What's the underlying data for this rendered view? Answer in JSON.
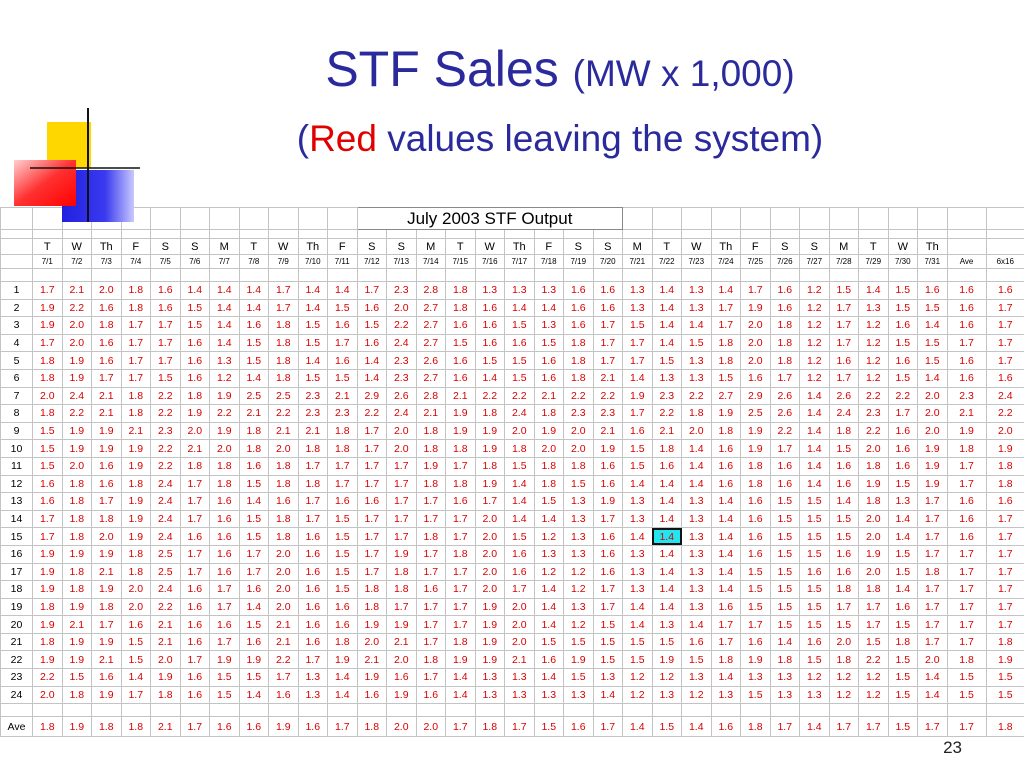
{
  "header": {
    "title": "STF Sales",
    "subtitle": "(MW x 1,000)",
    "note_open": "(",
    "note_red": "Red",
    "note_rest": " values leaving the system)"
  },
  "table": {
    "title": "July 2003 STF Output",
    "days": [
      "T",
      "W",
      "Th",
      "F",
      "S",
      "S",
      "M",
      "T",
      "W",
      "Th",
      "F",
      "S",
      "S",
      "M",
      "T",
      "W",
      "Th",
      "F",
      "S",
      "S",
      "M",
      "T",
      "W",
      "Th",
      "F",
      "S",
      "S",
      "M",
      "T",
      "W",
      "Th"
    ],
    "dates": [
      "7/1",
      "7/2",
      "7/3",
      "7/4",
      "7/5",
      "7/6",
      "7/7",
      "7/8",
      "7/9",
      "7/10",
      "7/11",
      "7/12",
      "7/13",
      "7/14",
      "7/15",
      "7/16",
      "7/17",
      "7/18",
      "7/19",
      "7/20",
      "7/21",
      "7/22",
      "7/23",
      "7/24",
      "7/25",
      "7/26",
      "7/27",
      "7/28",
      "7/29",
      "7/30",
      "7/31",
      "Ave",
      "6x16"
    ],
    "rows": [
      {
        "label": "1",
        "values": [
          "1.7",
          "2.1",
          "2.0",
          "1.8",
          "1.6",
          "1.4",
          "1.4",
          "1.4",
          "1.7",
          "1.4",
          "1.4",
          "1.7",
          "2.3",
          "2.8",
          "1.8",
          "1.3",
          "1.3",
          "1.3",
          "1.6",
          "1.6",
          "1.3",
          "1.4",
          "1.3",
          "1.4",
          "1.7",
          "1.6",
          "1.2",
          "1.5",
          "1.4",
          "1.5",
          "1.6",
          "1.6",
          "1.6"
        ]
      },
      {
        "label": "2",
        "values": [
          "1.9",
          "2.2",
          "1.6",
          "1.8",
          "1.6",
          "1.5",
          "1.4",
          "1.4",
          "1.7",
          "1.4",
          "1.5",
          "1.6",
          "2.0",
          "2.7",
          "1.8",
          "1.6",
          "1.4",
          "1.4",
          "1.6",
          "1.6",
          "1.3",
          "1.4",
          "1.3",
          "1.7",
          "1.9",
          "1.6",
          "1.2",
          "1.7",
          "1.3",
          "1.5",
          "1.5",
          "1.6",
          "1.7"
        ]
      },
      {
        "label": "3",
        "values": [
          "1.9",
          "2.0",
          "1.8",
          "1.7",
          "1.7",
          "1.5",
          "1.4",
          "1.6",
          "1.8",
          "1.5",
          "1.6",
          "1.5",
          "2.2",
          "2.7",
          "1.6",
          "1.6",
          "1.5",
          "1.3",
          "1.6",
          "1.7",
          "1.5",
          "1.4",
          "1.4",
          "1.7",
          "2.0",
          "1.8",
          "1.2",
          "1.7",
          "1.2",
          "1.6",
          "1.4",
          "1.6",
          "1.7"
        ]
      },
      {
        "label": "4",
        "values": [
          "1.7",
          "2.0",
          "1.6",
          "1.7",
          "1.7",
          "1.6",
          "1.4",
          "1.5",
          "1.8",
          "1.5",
          "1.7",
          "1.6",
          "2.4",
          "2.7",
          "1.5",
          "1.6",
          "1.6",
          "1.5",
          "1.8",
          "1.7",
          "1.7",
          "1.4",
          "1.5",
          "1.8",
          "2.0",
          "1.8",
          "1.2",
          "1.7",
          "1.2",
          "1.5",
          "1.5",
          "1.7",
          "1.7"
        ]
      },
      {
        "label": "5",
        "values": [
          "1.8",
          "1.9",
          "1.6",
          "1.7",
          "1.7",
          "1.6",
          "1.3",
          "1.5",
          "1.8",
          "1.4",
          "1.6",
          "1.4",
          "2.3",
          "2.6",
          "1.6",
          "1.5",
          "1.5",
          "1.6",
          "1.8",
          "1.7",
          "1.7",
          "1.5",
          "1.3",
          "1.8",
          "2.0",
          "1.8",
          "1.2",
          "1.6",
          "1.2",
          "1.6",
          "1.5",
          "1.6",
          "1.7"
        ]
      },
      {
        "label": "6",
        "values": [
          "1.8",
          "1.9",
          "1.7",
          "1.7",
          "1.5",
          "1.6",
          "1.2",
          "1.4",
          "1.8",
          "1.5",
          "1.5",
          "1.4",
          "2.3",
          "2.7",
          "1.6",
          "1.4",
          "1.5",
          "1.6",
          "1.8",
          "2.1",
          "1.4",
          "1.3",
          "1.3",
          "1.5",
          "1.6",
          "1.7",
          "1.2",
          "1.7",
          "1.2",
          "1.5",
          "1.4",
          "1.6",
          "1.6"
        ]
      },
      {
        "label": "7",
        "values": [
          "2.0",
          "2.4",
          "2.1",
          "1.8",
          "2.2",
          "1.8",
          "1.9",
          "2.5",
          "2.5",
          "2.3",
          "2.1",
          "2.9",
          "2.6",
          "2.8",
          "2.1",
          "2.2",
          "2.2",
          "2.1",
          "2.2",
          "2.2",
          "1.9",
          "2.3",
          "2.2",
          "2.7",
          "2.9",
          "2.6",
          "1.4",
          "2.6",
          "2.2",
          "2.2",
          "2.0",
          "2.3",
          "2.4"
        ]
      },
      {
        "label": "8",
        "values": [
          "1.8",
          "2.2",
          "2.1",
          "1.8",
          "2.2",
          "1.9",
          "2.2",
          "2.1",
          "2.2",
          "2.3",
          "2.3",
          "2.2",
          "2.4",
          "2.1",
          "1.9",
          "1.8",
          "2.4",
          "1.8",
          "2.3",
          "2.3",
          "1.7",
          "2.2",
          "1.8",
          "1.9",
          "2.5",
          "2.6",
          "1.4",
          "2.4",
          "2.3",
          "1.7",
          "2.0",
          "2.1",
          "2.2"
        ]
      },
      {
        "label": "9",
        "values": [
          "1.5",
          "1.9",
          "1.9",
          "2.1",
          "2.3",
          "2.0",
          "1.9",
          "1.8",
          "2.1",
          "2.1",
          "1.8",
          "1.7",
          "2.0",
          "1.8",
          "1.9",
          "1.9",
          "2.0",
          "1.9",
          "2.0",
          "2.1",
          "1.6",
          "2.1",
          "2.0",
          "1.8",
          "1.9",
          "2.2",
          "1.4",
          "1.8",
          "2.2",
          "1.6",
          "2.0",
          "1.9",
          "2.0"
        ]
      },
      {
        "label": "10",
        "values": [
          "1.5",
          "1.9",
          "1.9",
          "1.9",
          "2.2",
          "2.1",
          "2.0",
          "1.8",
          "2.0",
          "1.8",
          "1.8",
          "1.7",
          "2.0",
          "1.8",
          "1.8",
          "1.9",
          "1.8",
          "2.0",
          "2.0",
          "1.9",
          "1.5",
          "1.8",
          "1.4",
          "1.6",
          "1.9",
          "1.7",
          "1.4",
          "1.5",
          "2.0",
          "1.6",
          "1.9",
          "1.8",
          "1.9"
        ]
      },
      {
        "label": "11",
        "values": [
          "1.5",
          "2.0",
          "1.6",
          "1.9",
          "2.2",
          "1.8",
          "1.8",
          "1.6",
          "1.8",
          "1.7",
          "1.7",
          "1.7",
          "1.7",
          "1.9",
          "1.7",
          "1.8",
          "1.5",
          "1.8",
          "1.8",
          "1.6",
          "1.5",
          "1.6",
          "1.4",
          "1.6",
          "1.8",
          "1.6",
          "1.4",
          "1.6",
          "1.8",
          "1.6",
          "1.9",
          "1.7",
          "1.8"
        ]
      },
      {
        "label": "12",
        "values": [
          "1.6",
          "1.8",
          "1.6",
          "1.8",
          "2.4",
          "1.7",
          "1.8",
          "1.5",
          "1.8",
          "1.8",
          "1.7",
          "1.7",
          "1.7",
          "1.8",
          "1.8",
          "1.9",
          "1.4",
          "1.8",
          "1.5",
          "1.6",
          "1.4",
          "1.4",
          "1.4",
          "1.6",
          "1.8",
          "1.6",
          "1.4",
          "1.6",
          "1.9",
          "1.5",
          "1.9",
          "1.7",
          "1.8"
        ]
      },
      {
        "label": "13",
        "values": [
          "1.6",
          "1.8",
          "1.7",
          "1.9",
          "2.4",
          "1.7",
          "1.6",
          "1.4",
          "1.6",
          "1.7",
          "1.6",
          "1.6",
          "1.7",
          "1.7",
          "1.6",
          "1.7",
          "1.4",
          "1.5",
          "1.3",
          "1.9",
          "1.3",
          "1.4",
          "1.3",
          "1.4",
          "1.6",
          "1.5",
          "1.5",
          "1.4",
          "1.8",
          "1.3",
          "1.7",
          "1.6",
          "1.6"
        ]
      },
      {
        "label": "14",
        "values": [
          "1.7",
          "1.8",
          "1.8",
          "1.9",
          "2.4",
          "1.7",
          "1.6",
          "1.5",
          "1.8",
          "1.7",
          "1.5",
          "1.7",
          "1.7",
          "1.7",
          "1.7",
          "2.0",
          "1.4",
          "1.4",
          "1.3",
          "1.7",
          "1.3",
          "1.4",
          "1.3",
          "1.4",
          "1.6",
          "1.5",
          "1.5",
          "1.5",
          "2.0",
          "1.4",
          "1.7",
          "1.6",
          "1.7"
        ]
      },
      {
        "label": "15",
        "values": [
          "1.7",
          "1.8",
          "2.0",
          "1.9",
          "2.4",
          "1.6",
          "1.6",
          "1.5",
          "1.8",
          "1.6",
          "1.5",
          "1.7",
          "1.7",
          "1.8",
          "1.7",
          "2.0",
          "1.5",
          "1.2",
          "1.3",
          "1.6",
          "1.4",
          "1.4",
          "1.3",
          "1.4",
          "1.6",
          "1.5",
          "1.5",
          "1.5",
          "2.0",
          "1.4",
          "1.7",
          "1.6",
          "1.7"
        ]
      },
      {
        "label": "16",
        "values": [
          "1.9",
          "1.9",
          "1.9",
          "1.8",
          "2.5",
          "1.7",
          "1.6",
          "1.7",
          "2.0",
          "1.6",
          "1.5",
          "1.7",
          "1.9",
          "1.7",
          "1.8",
          "2.0",
          "1.6",
          "1.3",
          "1.3",
          "1.6",
          "1.3",
          "1.4",
          "1.3",
          "1.4",
          "1.6",
          "1.5",
          "1.5",
          "1.6",
          "1.9",
          "1.5",
          "1.7",
          "1.7",
          "1.7"
        ]
      },
      {
        "label": "17",
        "values": [
          "1.9",
          "1.8",
          "2.1",
          "1.8",
          "2.5",
          "1.7",
          "1.6",
          "1.7",
          "2.0",
          "1.6",
          "1.5",
          "1.7",
          "1.8",
          "1.7",
          "1.7",
          "2.0",
          "1.6",
          "1.2",
          "1.2",
          "1.6",
          "1.3",
          "1.4",
          "1.3",
          "1.4",
          "1.5",
          "1.5",
          "1.6",
          "1.6",
          "2.0",
          "1.5",
          "1.8",
          "1.7",
          "1.7"
        ]
      },
      {
        "label": "18",
        "values": [
          "1.9",
          "1.8",
          "1.9",
          "2.0",
          "2.4",
          "1.6",
          "1.7",
          "1.6",
          "2.0",
          "1.6",
          "1.5",
          "1.8",
          "1.8",
          "1.6",
          "1.7",
          "2.0",
          "1.7",
          "1.4",
          "1.2",
          "1.7",
          "1.3",
          "1.4",
          "1.3",
          "1.4",
          "1.5",
          "1.5",
          "1.5",
          "1.8",
          "1.8",
          "1.4",
          "1.7",
          "1.7",
          "1.7"
        ]
      },
      {
        "label": "19",
        "values": [
          "1.8",
          "1.9",
          "1.8",
          "2.0",
          "2.2",
          "1.6",
          "1.7",
          "1.4",
          "2.0",
          "1.6",
          "1.6",
          "1.8",
          "1.7",
          "1.7",
          "1.7",
          "1.9",
          "2.0",
          "1.4",
          "1.3",
          "1.7",
          "1.4",
          "1.4",
          "1.3",
          "1.6",
          "1.5",
          "1.5",
          "1.5",
          "1.7",
          "1.7",
          "1.6",
          "1.7",
          "1.7",
          "1.7"
        ]
      },
      {
        "label": "20",
        "values": [
          "1.9",
          "2.1",
          "1.7",
          "1.6",
          "2.1",
          "1.6",
          "1.6",
          "1.5",
          "2.1",
          "1.6",
          "1.6",
          "1.9",
          "1.9",
          "1.7",
          "1.7",
          "1.9",
          "2.0",
          "1.4",
          "1.2",
          "1.5",
          "1.4",
          "1.3",
          "1.4",
          "1.7",
          "1.7",
          "1.5",
          "1.5",
          "1.5",
          "1.7",
          "1.5",
          "1.7",
          "1.7",
          "1.7"
        ]
      },
      {
        "label": "21",
        "values": [
          "1.8",
          "1.9",
          "1.9",
          "1.5",
          "2.1",
          "1.6",
          "1.7",
          "1.6",
          "2.1",
          "1.6",
          "1.8",
          "2.0",
          "2.1",
          "1.7",
          "1.8",
          "1.9",
          "2.0",
          "1.5",
          "1.5",
          "1.5",
          "1.5",
          "1.5",
          "1.6",
          "1.7",
          "1.6",
          "1.4",
          "1.6",
          "2.0",
          "1.5",
          "1.8",
          "1.7",
          "1.7",
          "1.8"
        ]
      },
      {
        "label": "22",
        "values": [
          "1.9",
          "1.9",
          "2.1",
          "1.5",
          "2.0",
          "1.7",
          "1.9",
          "1.9",
          "2.2",
          "1.7",
          "1.9",
          "2.1",
          "2.0",
          "1.8",
          "1.9",
          "1.9",
          "2.1",
          "1.6",
          "1.9",
          "1.5",
          "1.5",
          "1.9",
          "1.5",
          "1.8",
          "1.9",
          "1.8",
          "1.5",
          "1.8",
          "2.2",
          "1.5",
          "2.0",
          "1.8",
          "1.9"
        ]
      },
      {
        "label": "23",
        "values": [
          "2.2",
          "1.5",
          "1.6",
          "1.4",
          "1.9",
          "1.6",
          "1.5",
          "1.5",
          "1.7",
          "1.3",
          "1.4",
          "1.9",
          "1.6",
          "1.7",
          "1.4",
          "1.3",
          "1.3",
          "1.4",
          "1.5",
          "1.3",
          "1.2",
          "1.2",
          "1.3",
          "1.4",
          "1.3",
          "1.3",
          "1.2",
          "1.2",
          "1.2",
          "1.5",
          "1.4",
          "1.5",
          "1.5"
        ]
      },
      {
        "label": "24",
        "values": [
          "2.0",
          "1.8",
          "1.9",
          "1.7",
          "1.8",
          "1.6",
          "1.5",
          "1.4",
          "1.6",
          "1.3",
          "1.4",
          "1.6",
          "1.9",
          "1.6",
          "1.4",
          "1.3",
          "1.3",
          "1.3",
          "1.3",
          "1.4",
          "1.2",
          "1.3",
          "1.2",
          "1.3",
          "1.5",
          "1.3",
          "1.3",
          "1.2",
          "1.2",
          "1.5",
          "1.4",
          "1.5",
          "1.5"
        ]
      }
    ],
    "average": {
      "label": "Ave",
      "values": [
        "1.8",
        "1.9",
        "1.8",
        "1.8",
        "2.1",
        "1.7",
        "1.6",
        "1.6",
        "1.9",
        "1.6",
        "1.7",
        "1.8",
        "2.0",
        "2.0",
        "1.7",
        "1.8",
        "1.7",
        "1.5",
        "1.6",
        "1.7",
        "1.4",
        "1.5",
        "1.4",
        "1.6",
        "1.8",
        "1.7",
        "1.4",
        "1.7",
        "1.7",
        "1.5",
        "1.7",
        "1.7",
        "1.8"
      ]
    }
  },
  "page_number": "23"
}
